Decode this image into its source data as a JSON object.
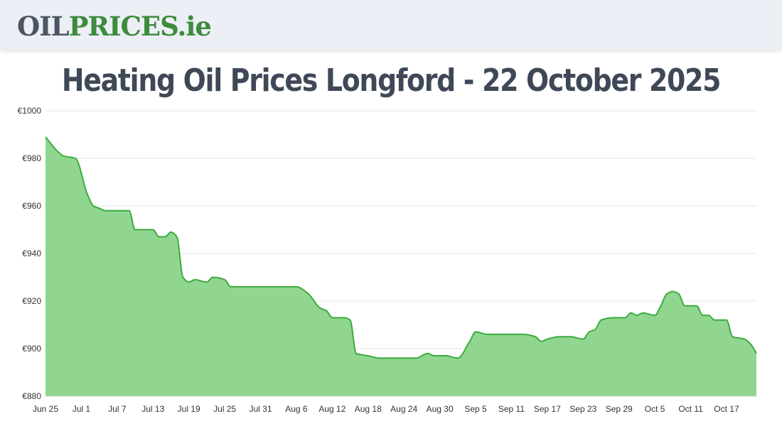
{
  "logo": {
    "part1": "OIL",
    "part2": "PRICES",
    "part3": ".ie"
  },
  "title": "Heating Oil Prices Longford - 22 October 2025",
  "colors": {
    "line": "#3cab3c",
    "fill": "#90d690",
    "grid": "#e6e6e6",
    "header_bg": "#eceff5"
  },
  "chart_data": {
    "type": "area",
    "title": "",
    "xlabel": "",
    "ylabel": "",
    "ylim": [
      880,
      1000
    ],
    "yticks": [
      880,
      900,
      920,
      940,
      960,
      980,
      1000
    ],
    "ytick_labels": [
      "€880",
      "€900",
      "€920",
      "€940",
      "€960",
      "€980",
      "€1000"
    ],
    "xlim": [
      "2025-06-25",
      "2025-10-22"
    ],
    "xticks": [
      "2025-06-25",
      "2025-07-01",
      "2025-07-07",
      "2025-07-13",
      "2025-07-19",
      "2025-07-25",
      "2025-07-31",
      "2025-08-06",
      "2025-08-12",
      "2025-08-18",
      "2025-08-24",
      "2025-08-30",
      "2025-09-05",
      "2025-09-11",
      "2025-09-17",
      "2025-09-23",
      "2025-09-29",
      "2025-10-05",
      "2025-10-11",
      "2025-10-17"
    ],
    "xtick_labels": [
      "Jun 25",
      "Jul 1",
      "Jul 7",
      "Jul 13",
      "Jul 19",
      "Jul 25",
      "Jul 31",
      "Aug 6",
      "Aug 12",
      "Aug 18",
      "Aug 24",
      "Aug 30",
      "Sep 5",
      "Sep 11",
      "Sep 17",
      "Sep 23",
      "Sep 29",
      "Oct 5",
      "Oct 11",
      "Oct 17"
    ],
    "grid": true,
    "series": [
      {
        "points": [
          [
            "2025-06-25",
            989
          ],
          [
            "2025-06-27",
            983
          ],
          [
            "2025-06-28",
            981
          ],
          [
            "2025-06-30",
            980
          ],
          [
            "2025-07-02",
            965
          ],
          [
            "2025-07-03",
            960
          ],
          [
            "2025-07-04",
            959
          ],
          [
            "2025-07-05",
            958
          ],
          [
            "2025-07-07",
            958
          ],
          [
            "2025-07-09",
            958
          ],
          [
            "2025-07-10",
            950
          ],
          [
            "2025-07-12",
            950
          ],
          [
            "2025-07-13",
            950
          ],
          [
            "2025-07-14",
            947
          ],
          [
            "2025-07-15",
            947
          ],
          [
            "2025-07-16",
            949
          ],
          [
            "2025-07-17",
            947
          ],
          [
            "2025-07-18",
            930
          ],
          [
            "2025-07-19",
            928
          ],
          [
            "2025-07-20",
            929
          ],
          [
            "2025-07-22",
            928
          ],
          [
            "2025-07-23",
            930
          ],
          [
            "2025-07-25",
            929
          ],
          [
            "2025-07-26",
            926
          ],
          [
            "2025-07-28",
            926
          ],
          [
            "2025-07-31",
            926
          ],
          [
            "2025-08-03",
            926
          ],
          [
            "2025-08-06",
            926
          ],
          [
            "2025-08-08",
            923
          ],
          [
            "2025-08-10",
            917
          ],
          [
            "2025-08-11",
            916
          ],
          [
            "2025-08-12",
            913
          ],
          [
            "2025-08-14",
            913
          ],
          [
            "2025-08-15",
            912
          ],
          [
            "2025-08-16",
            898
          ],
          [
            "2025-08-18",
            897
          ],
          [
            "2025-08-20",
            896
          ],
          [
            "2025-08-22",
            896
          ],
          [
            "2025-08-24",
            896
          ],
          [
            "2025-08-26",
            896
          ],
          [
            "2025-08-28",
            898
          ],
          [
            "2025-08-29",
            897
          ],
          [
            "2025-08-31",
            897
          ],
          [
            "2025-09-02",
            896
          ],
          [
            "2025-09-04",
            903
          ],
          [
            "2025-09-05",
            907
          ],
          [
            "2025-09-07",
            906
          ],
          [
            "2025-09-09",
            906
          ],
          [
            "2025-09-11",
            906
          ],
          [
            "2025-09-13",
            906
          ],
          [
            "2025-09-15",
            905
          ],
          [
            "2025-09-16",
            903
          ],
          [
            "2025-09-17",
            904
          ],
          [
            "2025-09-19",
            905
          ],
          [
            "2025-09-21",
            905
          ],
          [
            "2025-09-23",
            904
          ],
          [
            "2025-09-24",
            907
          ],
          [
            "2025-09-25",
            908
          ],
          [
            "2025-09-26",
            912
          ],
          [
            "2025-09-28",
            913
          ],
          [
            "2025-09-30",
            913
          ],
          [
            "2025-10-01",
            915
          ],
          [
            "2025-10-02",
            914
          ],
          [
            "2025-10-03",
            915
          ],
          [
            "2025-10-05",
            914
          ],
          [
            "2025-10-06",
            918
          ],
          [
            "2025-10-07",
            923
          ],
          [
            "2025-10-08",
            924
          ],
          [
            "2025-10-09",
            923
          ],
          [
            "2025-10-10",
            918
          ],
          [
            "2025-10-11",
            918
          ],
          [
            "2025-10-12",
            918
          ],
          [
            "2025-10-13",
            914
          ],
          [
            "2025-10-14",
            914
          ],
          [
            "2025-10-15",
            912
          ],
          [
            "2025-10-17",
            912
          ],
          [
            "2025-10-18",
            905
          ],
          [
            "2025-10-20",
            904
          ],
          [
            "2025-10-21",
            902
          ],
          [
            "2025-10-22",
            898
          ]
        ]
      }
    ]
  }
}
